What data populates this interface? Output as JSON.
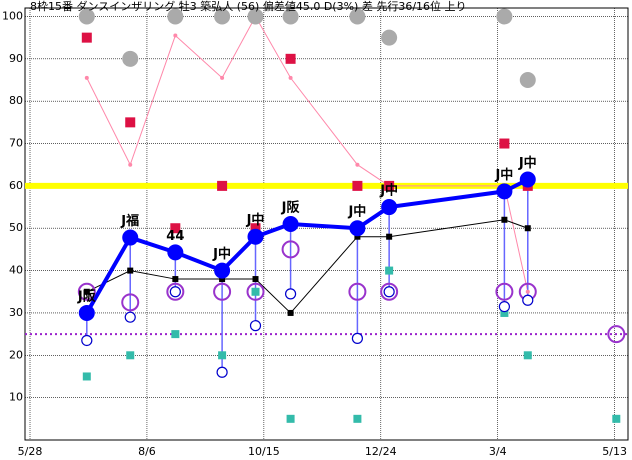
{
  "chart_data": {
    "type": "line",
    "title": "8枠15番 ダンスインザリング 牡3 築弘人 (56) 偏差値45.0 D(3%) 差 先行36/16位 上り",
    "x": [
      34,
      60,
      87,
      115,
      135,
      156,
      196,
      215,
      284,
      298,
      351
    ],
    "xlim": [
      -3,
      358
    ],
    "xticks": [
      {
        "value": 0,
        "label": "5/28"
      },
      {
        "value": 70,
        "label": "8/6"
      },
      {
        "value": 140,
        "label": "10/15"
      },
      {
        "value": 210,
        "label": "12/24"
      },
      {
        "value": 280,
        "label": "3/4"
      },
      {
        "value": 350,
        "label": "5/13"
      }
    ],
    "ylim": [
      0,
      102
    ],
    "yticks": [
      10,
      20,
      30,
      40,
      50,
      60,
      70,
      80,
      90,
      100
    ],
    "grid": true,
    "hlines": [
      {
        "value": 60,
        "color": "#ffff00"
      },
      {
        "value": 25,
        "color": "#9922cc"
      }
    ],
    "series": [
      {
        "color": "#ff88aa",
        "line": true,
        "marker": "dot",
        "values": [
          85.5,
          65,
          95.5,
          85.5,
          100,
          85.5,
          65,
          60,
          60,
          35,
          null
        ]
      },
      {
        "color": "#000000",
        "line": true,
        "marker": "square",
        "values": [
          35,
          40,
          38,
          38,
          38,
          30,
          48,
          48,
          52,
          50,
          null
        ]
      },
      {
        "color": "#0000ff",
        "line": true,
        "marker": "circle",
        "values": [
          30,
          47.8,
          44.3,
          40,
          48,
          51,
          50,
          55,
          58.7,
          61.5,
          null
        ],
        "point_labels": [
          "J阪",
          "J福",
          "44",
          "J中",
          "J中",
          "J阪",
          "J中",
          "J中",
          "J中",
          "J中",
          null
        ]
      },
      {
        "color": "#dd1144",
        "line": false,
        "marker": "square-big",
        "values": [
          95,
          75,
          50,
          60,
          50,
          90,
          60,
          60,
          70,
          60,
          null
        ]
      },
      {
        "color": "#33bbaa",
        "line": false,
        "marker": "square-mid",
        "values": [
          15,
          20,
          25,
          20,
          35,
          5,
          5,
          40,
          30,
          20,
          5
        ]
      },
      {
        "color": "#aaaaaa",
        "line": false,
        "marker": "circle",
        "values": [
          100,
          90,
          100,
          100,
          100,
          100,
          100,
          95,
          100,
          85,
          null
        ]
      },
      {
        "color": "#9933cc",
        "line": false,
        "marker": "ring-big",
        "values": [
          35,
          32.5,
          35,
          35,
          35,
          45,
          35,
          35,
          35,
          35,
          25
        ]
      },
      {
        "color": "#0000cc",
        "line": false,
        "marker": "ring",
        "values": [
          23.5,
          29,
          35,
          16,
          27,
          34.5,
          24,
          35,
          31.5,
          33,
          null
        ]
      }
    ]
  }
}
